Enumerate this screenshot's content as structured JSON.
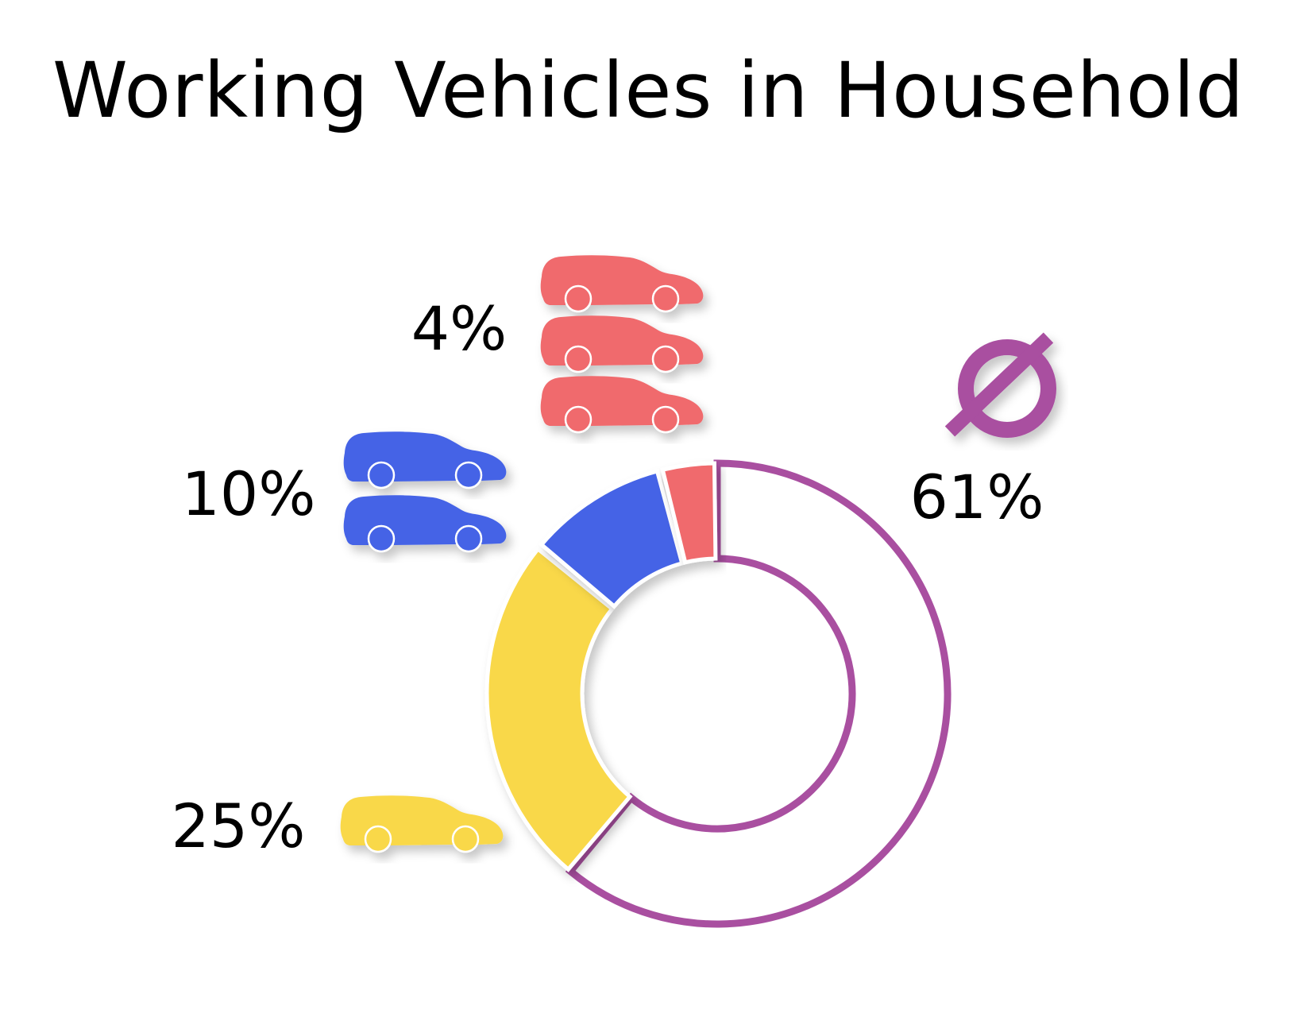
{
  "chart_data": {
    "type": "pie",
    "title": "Working Vehicles in Household",
    "categories": [
      "0",
      "1",
      "2",
      "3+"
    ],
    "values": [
      61,
      25,
      10,
      4
    ],
    "labels": [
      "61%",
      "25%",
      "10%",
      "4%"
    ],
    "colors": [
      "#a94fa0",
      "#f9d84a",
      "#4463e6",
      "#f06a6d"
    ],
    "icons": [
      "no-vehicle-icon",
      "car-icon",
      "car-icon",
      "car-icon"
    ],
    "icon_counts": [
      0,
      1,
      2,
      3
    ],
    "donut": true,
    "legend": "none"
  }
}
